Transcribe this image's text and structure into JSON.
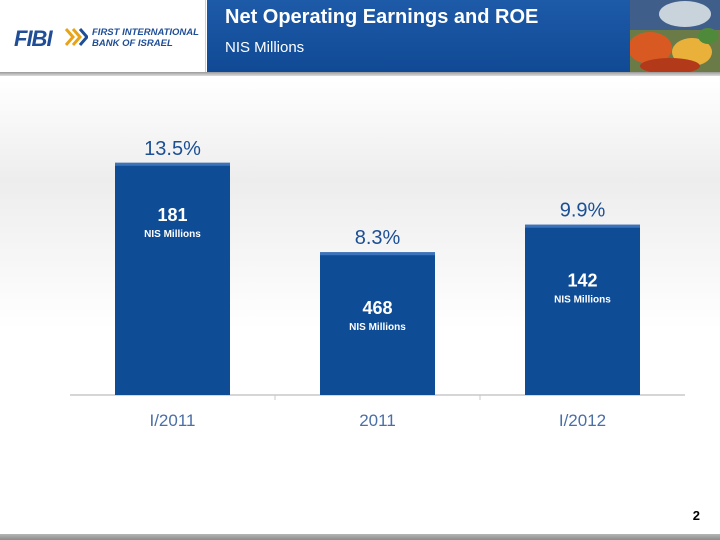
{
  "header": {
    "logo_word": "FIBI",
    "logo_line1": "FIRST INTERNATIONAL",
    "logo_line2": "BANK OF ISRAEL",
    "title": "Net Operating Earnings and ROE",
    "subtitle": "NIS Millions"
  },
  "chart_data": {
    "type": "bar",
    "categories": [
      "I/2011",
      "2011",
      "I/2012"
    ],
    "values": [
      181,
      468,
      142
    ],
    "value_unit_label": "NIS Millions",
    "roe_labels": [
      "13.5%",
      "8.3%",
      "9.9%"
    ],
    "roe_values": [
      13.5,
      8.3,
      9.9
    ],
    "bar_color": "#0e4c96",
    "title": "Net Operating Earnings and ROE",
    "subtitle": "NIS Millions",
    "xlabel": "",
    "ylabel": "",
    "grid": false,
    "legend": "none"
  },
  "footer": {
    "page_number": "2"
  }
}
